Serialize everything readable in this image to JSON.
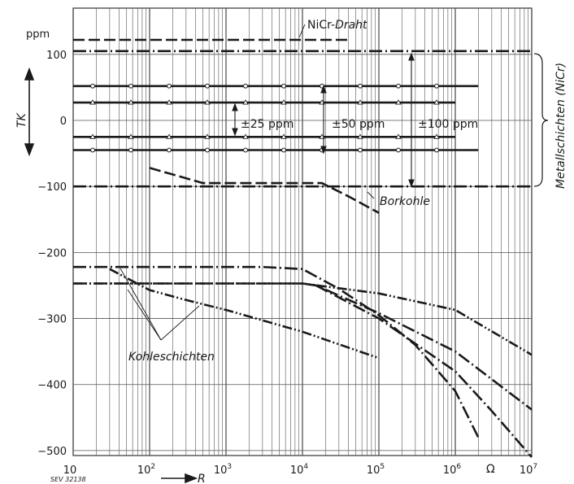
{
  "chart_data": {
    "type": "line",
    "x_scale": "log",
    "xlim": [
      10,
      10000000
    ],
    "ylim": [
      -510,
      135
    ],
    "grid": true,
    "y_unit": "ppm",
    "ylabel": "TK",
    "xlabel": "R",
    "x_unit": "Ω",
    "x_ticks": [
      {
        "value": 10,
        "base": "10",
        "exp": ""
      },
      {
        "value": 100,
        "base": "10",
        "exp": "2"
      },
      {
        "value": 1000,
        "base": "10",
        "exp": "3"
      },
      {
        "value": 10000,
        "base": "10",
        "exp": "4"
      },
      {
        "value": 100000,
        "base": "10",
        "exp": "5"
      },
      {
        "value": 1000000,
        "base": "10",
        "exp": "6"
      },
      {
        "value": 10000000,
        "base": "10",
        "exp": "7"
      }
    ],
    "y_ticks": [
      {
        "value": 100,
        "label": "100"
      },
      {
        "value": 0,
        "label": "0"
      },
      {
        "value": -100,
        "label": "−100"
      },
      {
        "value": -200,
        "label": "−200"
      },
      {
        "value": -300,
        "label": "−300"
      },
      {
        "value": -400,
        "label": "−400"
      },
      {
        "value": -500,
        "label": "−500"
      }
    ],
    "series": [
      {
        "name": "NiCr-Draht",
        "style": "dash",
        "x": [
          10,
          40000
        ],
        "y": [
          122,
          122
        ]
      },
      {
        "style": "dot-dash",
        "x": [
          10,
          10000000
        ],
        "y": [
          105,
          105
        ]
      },
      {
        "style": "dot-dash",
        "x": [
          10,
          10000000
        ],
        "y": [
          -100,
          -100
        ]
      },
      {
        "style": "circle",
        "x": [
          10,
          2000000
        ],
        "y": [
          52,
          52
        ]
      },
      {
        "style": "circle",
        "x": [
          10,
          2000000
        ],
        "y": [
          -45,
          -45
        ]
      },
      {
        "style": "triangle",
        "x": [
          10,
          1000000
        ],
        "y": [
          27,
          27
        ]
      },
      {
        "style": "triangle",
        "x": [
          10,
          1000000
        ],
        "y": [
          -25,
          -25
        ]
      },
      {
        "name": "Borkohle",
        "style": "dash",
        "x": [
          100,
          500,
          1000,
          18000,
          40000,
          100000
        ],
        "y": [
          -72,
          -95,
          -95,
          -95,
          -115,
          -140
        ]
      },
      {
        "style": "dot-dash",
        "x": [
          10,
          3000,
          10000,
          30000,
          100000,
          300000,
          1000000,
          2000000
        ],
        "y": [
          -222,
          -222,
          -225,
          -255,
          -295,
          -340,
          -410,
          -480
        ]
      },
      {
        "style": "dot-dot-dash",
        "x": [
          30,
          100,
          300,
          1000,
          10000,
          100000
        ],
        "y": [
          -225,
          -257,
          -272,
          -287,
          -320,
          -360
        ]
      },
      {
        "style": "dot-dot-dash",
        "x": [
          10,
          300,
          10000,
          100000,
          1000000,
          10000000
        ],
        "y": [
          -247,
          -247,
          -247,
          -262,
          -287,
          -355
        ]
      },
      {
        "style": "dot-dash",
        "x": [
          10,
          100,
          1000,
          10000,
          15000,
          100000,
          1000000,
          10000000
        ],
        "y": [
          -247,
          -247,
          -247,
          -247,
          -250,
          -292,
          -350,
          -438
        ]
      },
      {
        "style": "dot-dash",
        "x": [
          15000,
          100000,
          1000000,
          3000000,
          10000000
        ],
        "y": [
          -250,
          -300,
          -380,
          -440,
          -510
        ]
      }
    ],
    "annotations": {
      "ppm": "ppm",
      "nicr_prefix": "NiCr-",
      "nicr_italic": "Draht",
      "pm25": "±25 ppm",
      "pm50": "±50 ppm",
      "pm100": "±100 ppm",
      "borkohle": "Borkohle",
      "kohleschichten": "Kohleschichten",
      "metallschichten": "Metallschichten (NiCr)",
      "sev": "SEV 32138"
    }
  }
}
